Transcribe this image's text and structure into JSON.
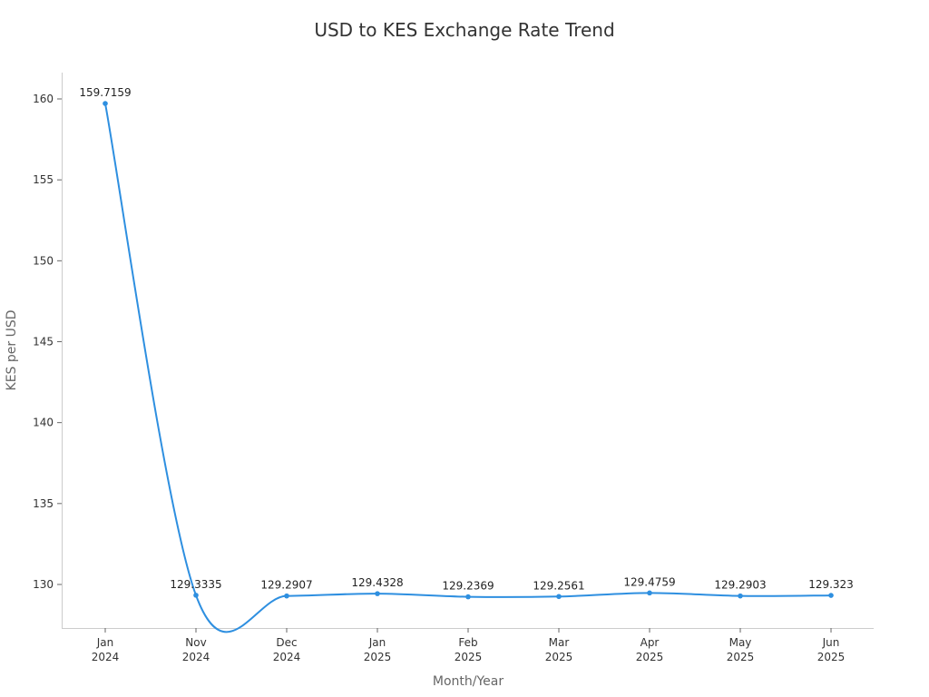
{
  "chart_data": {
    "type": "line",
    "title": "USD to KES Exchange Rate Trend",
    "xlabel": "Month/Year",
    "ylabel": "KES per USD",
    "categories": [
      [
        "Jan",
        "2024"
      ],
      [
        "Nov",
        "2024"
      ],
      [
        "Dec",
        "2024"
      ],
      [
        "Jan",
        "2025"
      ],
      [
        "Feb",
        "2025"
      ],
      [
        "Mar",
        "2025"
      ],
      [
        "Apr",
        "2025"
      ],
      [
        "May",
        "2025"
      ],
      [
        "Jun",
        "2025"
      ]
    ],
    "series": [
      {
        "name": "KES per USD",
        "values": [
          159.7159,
          129.3335,
          129.2907,
          129.4328,
          129.2369,
          129.2561,
          129.4759,
          129.2903,
          129.323
        ],
        "labels": [
          "159.7159",
          "129.3335",
          "129.2907",
          "129.4328",
          "129.2369",
          "129.2561",
          "129.4759",
          "129.2903",
          "129.323"
        ],
        "color": "#2e8fe0"
      }
    ],
    "yticks": [
      130,
      135,
      140,
      145,
      150,
      155,
      160
    ],
    "ylim": [
      127.4,
      161.8
    ],
    "grid": false,
    "legend": "none",
    "smooth": true
  }
}
